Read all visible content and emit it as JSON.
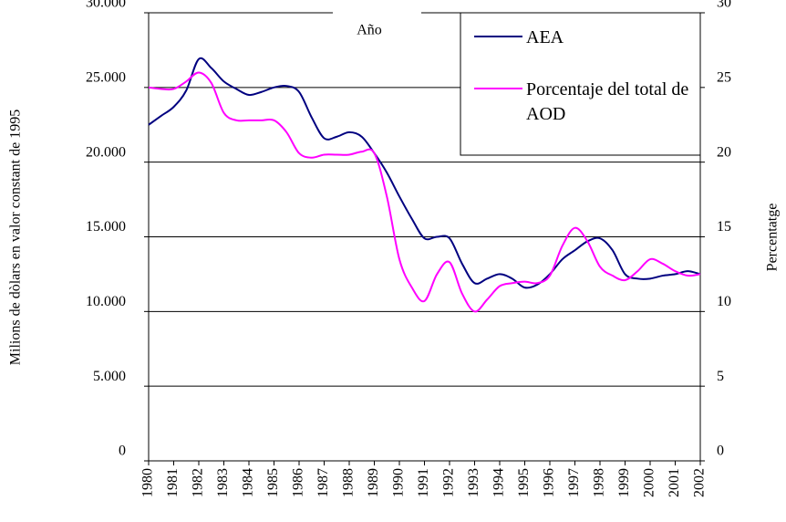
{
  "chart_data": {
    "type": "line",
    "title": "Año",
    "y_label": "Milions de dòlars en valor constant de 1995",
    "y2_label": "Percentatge",
    "x": [
      1980,
      1980.5,
      1981,
      1981.5,
      1982,
      1982.5,
      1983,
      1983.5,
      1984,
      1984.5,
      1985,
      1985.5,
      1986,
      1986.5,
      1987,
      1987.5,
      1988,
      1988.5,
      1989,
      1989.5,
      1990,
      1990.5,
      1991,
      1991.5,
      1992,
      1992.5,
      1993,
      1993.5,
      1994,
      1994.5,
      1995,
      1995.5,
      1996,
      1996.5,
      1997,
      1997.5,
      1998,
      1998.5,
      1999,
      1999.5,
      2000,
      2000.5,
      2001,
      2001.5,
      2002
    ],
    "series": [
      {
        "name": "AEA",
        "color": "#000080",
        "values": [
          22500,
          23100,
          23700,
          24800,
          26900,
          26300,
          25400,
          24900,
          24500,
          24700,
          25000,
          25100,
          24700,
          23000,
          21600,
          21700,
          22000,
          21700,
          20600,
          19300,
          17700,
          16200,
          14900,
          15000,
          14900,
          13200,
          11900,
          12200,
          12500,
          12200,
          11600,
          11800,
          12500,
          13500,
          14100,
          14700,
          14900,
          14100,
          12500,
          12200,
          12200,
          12400,
          12500,
          12700,
          12500
        ]
      },
      {
        "name": "Porcentaje del total de AOD",
        "color": "#ff00ff",
        "axis": "y2",
        "values": [
          25.0,
          24.9,
          24.9,
          25.4,
          26.0,
          25.3,
          23.3,
          22.8,
          22.8,
          22.8,
          22.8,
          22.0,
          20.6,
          20.3,
          20.5,
          20.5,
          20.5,
          20.7,
          20.6,
          17.7,
          13.5,
          11.6,
          10.7,
          12.5,
          13.3,
          11.2,
          10.0,
          10.8,
          11.7,
          11.9,
          12.0,
          11.9,
          12.4,
          14.4,
          15.6,
          14.7,
          13.0,
          12.4,
          12.1,
          12.7,
          13.5,
          13.2,
          12.7,
          12.4,
          12.5
        ]
      }
    ],
    "xlim": [
      1980,
      2002
    ],
    "xticks": [
      1980,
      1981,
      1982,
      1983,
      1984,
      1985,
      1986,
      1987,
      1988,
      1989,
      1990,
      1991,
      1992,
      1993,
      1994,
      1995,
      1996,
      1997,
      1998,
      1999,
      2000,
      2001,
      2002
    ],
    "ylim": [
      0,
      30000
    ],
    "yticks": [
      0,
      {
        "value": 5000,
        "label": "5.000"
      },
      {
        "value": 10000,
        "label": "10.000"
      },
      {
        "value": 15000,
        "label": "15.000"
      },
      {
        "value": 20000,
        "label": "20.000"
      },
      {
        "value": 25000,
        "label": "25.000"
      },
      {
        "value": 30000,
        "label": "30.000"
      }
    ],
    "y2lim": [
      0,
      30
    ],
    "y2ticks": [
      0,
      5,
      10,
      15,
      20,
      25,
      30
    ],
    "grid": true,
    "legend": "upper right"
  }
}
